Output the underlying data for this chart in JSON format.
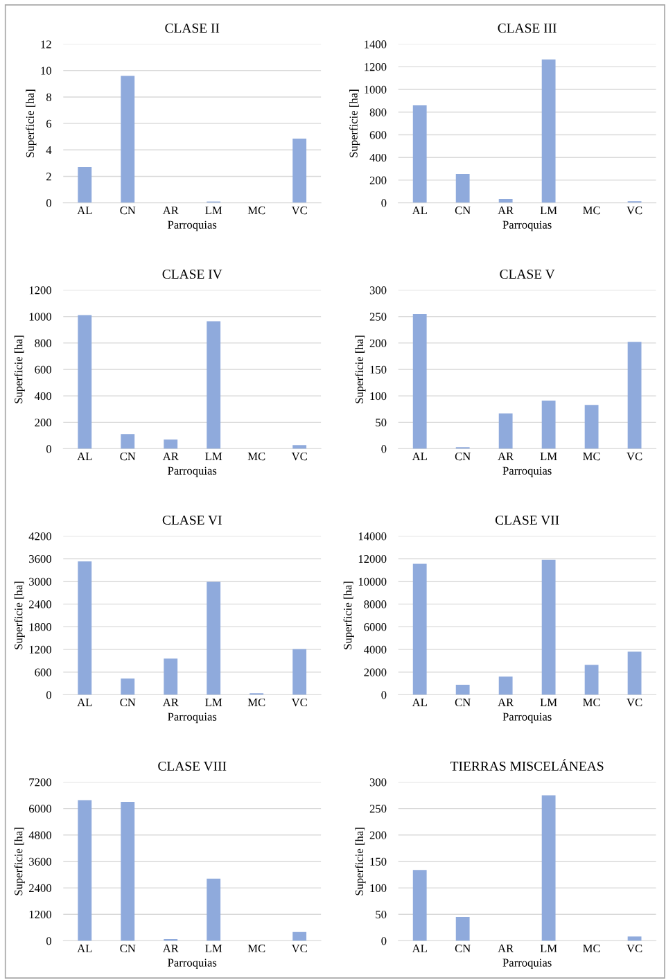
{
  "chart_data": [
    {
      "type": "bar",
      "title": "CLASE II",
      "xlabel": "Parroquias",
      "ylabel": "Superficie [ha]",
      "categories": [
        "AL",
        "CN",
        "AR",
        "LM",
        "MC",
        "VC"
      ],
      "color": "#8faadc",
      "values": [
        2.7,
        9.6,
        0,
        0.1,
        0,
        4.85
      ],
      "ylim": [
        0,
        12
      ],
      "yticks": [
        0,
        2,
        4,
        6,
        8,
        10,
        12
      ],
      "grid": "y"
    },
    {
      "type": "bar",
      "title": "CLASE III",
      "xlabel": "Parroquias",
      "ylabel": "Superficie [ha]",
      "categories": [
        "AL",
        "CN",
        "AR",
        "LM",
        "MC",
        "VC"
      ],
      "color": "#8faadc",
      "values": [
        860,
        255,
        35,
        1265,
        0,
        15
      ],
      "ylim": [
        0,
        1400
      ],
      "yticks": [
        0,
        200,
        400,
        600,
        800,
        1000,
        1200,
        1400
      ],
      "grid": "y"
    },
    {
      "type": "bar",
      "title": "CLASE IV",
      "xlabel": "Parroquias",
      "ylabel": "Superficie [ha]",
      "categories": [
        "AL",
        "CN",
        "AR",
        "LM",
        "MC",
        "VC"
      ],
      "color": "#8faadc",
      "values": [
        1010,
        112,
        70,
        965,
        0,
        28
      ],
      "ylim": [
        0,
        1200
      ],
      "yticks": [
        0,
        200,
        400,
        600,
        800,
        1000,
        1200
      ],
      "grid": "y"
    },
    {
      "type": "bar",
      "title": "CLASE V",
      "xlabel": "Parroquias",
      "ylabel": "Superficie [ha]",
      "categories": [
        "AL",
        "CN",
        "AR",
        "LM",
        "MC",
        "VC"
      ],
      "color": "#8faadc",
      "values": [
        255,
        3,
        67,
        91,
        83,
        202
      ],
      "ylim": [
        0,
        300
      ],
      "yticks": [
        0,
        50,
        100,
        150,
        200,
        250,
        300
      ],
      "grid": "y"
    },
    {
      "type": "bar",
      "title": "CLASE VI",
      "xlabel": "Parroquias",
      "ylabel": "Superficie [ha]",
      "categories": [
        "AL",
        "CN",
        "AR",
        "LM",
        "MC",
        "VC"
      ],
      "color": "#8faadc",
      "values": [
        3530,
        430,
        960,
        2990,
        40,
        1210
      ],
      "ylim": [
        0,
        4200
      ],
      "yticks": [
        0,
        600,
        1200,
        1800,
        2400,
        3000,
        3600,
        4200
      ],
      "grid": "y"
    },
    {
      "type": "bar",
      "title": "CLASE VII",
      "xlabel": "Parroquias",
      "ylabel": "Superficie [ha]",
      "categories": [
        "AL",
        "CN",
        "AR",
        "LM",
        "MC",
        "VC"
      ],
      "color": "#8faadc",
      "values": [
        11550,
        880,
        1600,
        11900,
        2650,
        3800
      ],
      "ylim": [
        0,
        14000
      ],
      "yticks": [
        0,
        2000,
        4000,
        6000,
        8000,
        10000,
        12000,
        14000
      ],
      "grid": "y"
    },
    {
      "type": "bar",
      "title": "CLASE VIII",
      "xlabel": "Parroquias",
      "ylabel": "Superficie [ha]",
      "categories": [
        "AL",
        "CN",
        "AR",
        "LM",
        "MC",
        "VC"
      ],
      "color": "#8faadc",
      "values": [
        6380,
        6300,
        80,
        2820,
        0,
        400
      ],
      "ylim": [
        0,
        7200
      ],
      "yticks": [
        0,
        1200,
        2400,
        3600,
        4800,
        6000,
        7200
      ],
      "grid": "y"
    },
    {
      "type": "bar",
      "title": "TIERRAS MISCELÁNEAS",
      "xlabel": "Parroquias",
      "ylabel": "Superficie [ha]",
      "categories": [
        "AL",
        "CN",
        "AR",
        "LM",
        "MC",
        "VC"
      ],
      "color": "#8faadc",
      "values": [
        134,
        45,
        0,
        275,
        0,
        8
      ],
      "ylim": [
        0,
        300
      ],
      "yticks": [
        0,
        50,
        100,
        150,
        200,
        250,
        300
      ],
      "grid": "y"
    }
  ]
}
